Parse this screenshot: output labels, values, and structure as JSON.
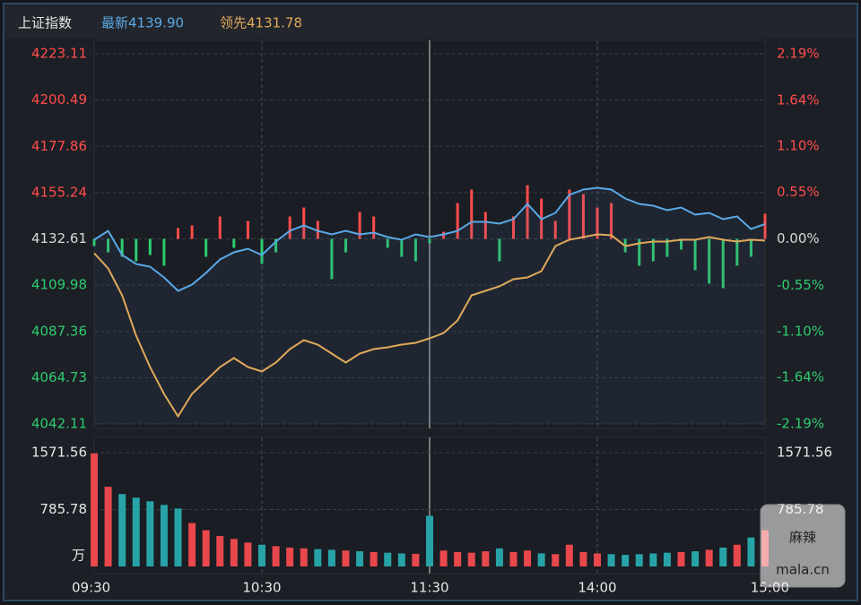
{
  "chart_data": [
    {
      "type": "line",
      "title": "上证指数",
      "ylim": [
        4042.11,
        4223.11
      ],
      "yticks": [
        4042.11,
        4064.73,
        4087.36,
        4109.98,
        4132.61,
        4155.24,
        4177.86,
        4200.49,
        4223.11
      ],
      "y2lim": [
        -2.19,
        2.19
      ],
      "y2ticks": [
        {
          "value": -2.19,
          "label": "-2.19%"
        },
        {
          "value": -1.64,
          "label": "-1.64%"
        },
        {
          "value": -1.1,
          "label": "-1.10%"
        },
        {
          "value": -0.55,
          "label": "-0.55%"
        },
        {
          "value": 0,
          "label": "0.00%"
        },
        {
          "value": 0.55,
          "label": "0.55%"
        },
        {
          "value": 1.1,
          "label": "1.10%"
        },
        {
          "value": 1.64,
          "label": "1.64%"
        },
        {
          "value": 2.19,
          "label": "2.19%"
        }
      ],
      "up_color": "#ff4d4d",
      "down_color": "#2ecc71",
      "flat_color": "#d8d8d8",
      "grid": true,
      "series": [
        {
          "name": "最新4139.90",
          "color": "#5aa9e6",
          "values": [
            4132.17,
            4136.55,
            4124.72,
            4120.34,
            4119.03,
            4113.77,
            4107.19,
            4110.26,
            4115.96,
            4122.53,
            4126.04,
            4127.79,
            4124.72,
            4131.3,
            4136.55,
            4139.18,
            4136.55,
            4134.8,
            4136.55,
            4134.8,
            4135.68,
            4133.49,
            4132.17,
            4134.8,
            4133.49,
            4134.8,
            4136.55,
            4140.94,
            4140.94,
            4140.06,
            4142.25,
            4149.7,
            4142.25,
            4145.32,
            4154.08,
            4156.71,
            4157.59,
            4156.71,
            4152.33,
            4149.7,
            4148.83,
            4146.64,
            4147.95,
            4144.44,
            4145.32,
            4142.25,
            4143.57,
            4137.43,
            4139.9
          ]
        },
        {
          "name": "领先4131.78",
          "color": "#e0a95a",
          "values": [
            4125.6,
            4118.15,
            4105.0,
            4085.28,
            4069.94,
            4056.79,
            4045.83,
            4056.79,
            4063.36,
            4069.94,
            4074.32,
            4069.94,
            4067.75,
            4072.13,
            4078.7,
            4083.09,
            4080.9,
            4076.51,
            4072.13,
            4076.51,
            4078.7,
            4079.58,
            4080.9,
            4081.77,
            4083.96,
            4086.59,
            4092.73,
            4105.0,
            4107.19,
            4109.38,
            4112.89,
            4113.77,
            4116.83,
            4129.1,
            4132.17,
            4133.49,
            4134.8,
            4134.36,
            4129.1,
            4130.42,
            4131.3,
            4131.3,
            4132.17,
            4132.17,
            4133.49,
            4132.17,
            4131.3,
            4132.17,
            4131.78
          ]
        }
      ],
      "bars": {
        "values": [
          4129.11,
          4126.04,
          4123.85,
          4121.66,
          4124.72,
          4119.47,
          4137.87,
          4139.18,
          4123.85,
          4143.56,
          4128.23,
          4141.37,
          4120.34,
          4126.04,
          4143.56,
          4147.94,
          4141.37,
          4112.9,
          4126.04,
          4145.75,
          4143.56,
          4128.23,
          4123.85,
          4121.66,
          4130.42,
          4136.11,
          4150.13,
          4156.7,
          4145.75,
          4121.66,
          4143.56,
          4158.89,
          4152.32,
          4141.37,
          4156.7,
          4154.51,
          4147.94,
          4150.13,
          4126.04,
          4119.47,
          4121.66,
          4123.85,
          4127.35,
          4117.27,
          4110.71,
          4108.52,
          4119.47,
          4123.85,
          4144.88
        ]
      }
    },
    {
      "type": "bar",
      "unit": "万",
      "categories": [
        "09:30",
        null,
        null,
        null,
        null,
        null,
        null,
        null,
        null,
        null,
        null,
        null,
        "10:30",
        null,
        null,
        null,
        null,
        null,
        null,
        null,
        null,
        null,
        null,
        null,
        "11:30",
        null,
        null,
        null,
        null,
        null,
        null,
        null,
        null,
        null,
        null,
        null,
        "14:00",
        null,
        null,
        null,
        null,
        null,
        null,
        null,
        null,
        null,
        null,
        null,
        "15:00"
      ],
      "ylim": [
        0,
        1571.56
      ],
      "yticks": [
        785.78,
        1571.56
      ],
      "up_color": "#e8484c",
      "down_color": "#27a3a8",
      "values": [
        1560,
        1100,
        1000,
        950,
        900,
        850,
        800,
        600,
        500,
        420,
        380,
        330,
        300,
        280,
        260,
        250,
        240,
        230,
        220,
        210,
        200,
        190,
        180,
        175,
        700,
        220,
        200,
        190,
        210,
        250,
        200,
        220,
        180,
        170,
        300,
        200,
        180,
        170,
        160,
        170,
        180,
        190,
        200,
        210,
        230,
        260,
        300,
        400,
        500
      ]
    }
  ],
  "watermark": {
    "text": "麻辣",
    "site": "mala.cn"
  }
}
